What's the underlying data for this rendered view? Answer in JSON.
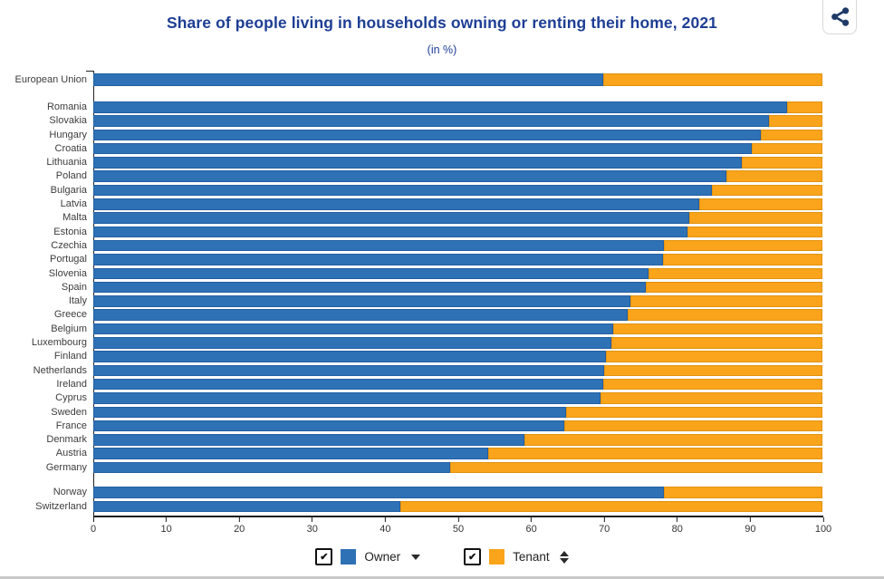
{
  "page": {
    "title": "Share of people living in households owning or renting their home, 2021",
    "subtitle": "(in %)"
  },
  "toolbar": {
    "share_icon": "share-icon",
    "share_icon_color": "#1f3a66"
  },
  "colors": {
    "owner": "#2E71B5",
    "tenant": "#F9A41B",
    "title_text": "#1d3e94",
    "axis": "#1a1a1a",
    "label_text": "#3c3c3c"
  },
  "chart_data": {
    "type": "bar",
    "stacked": true,
    "orientation": "horizontal",
    "title": "Share of people living in households owning or renting their home, 2021",
    "subtitle": "(in %)",
    "xlabel": "",
    "ylabel": "",
    "unit": "%",
    "xlim": [
      0,
      100
    ],
    "x_ticks": [
      0,
      10,
      20,
      30,
      40,
      50,
      60,
      70,
      80,
      90,
      100
    ],
    "grid": false,
    "legend_position": "bottom",
    "series": [
      {
        "name": "Owner",
        "color": "#2E71B5"
      },
      {
        "name": "Tenant",
        "color": "#F9A41B"
      }
    ],
    "groups": [
      {
        "label": "European Union",
        "owner": 69.9,
        "tenant": 30.1,
        "row_class": "eu"
      },
      {
        "label": "Romania",
        "owner": 95.2,
        "tenant": 4.8,
        "row_class": ""
      },
      {
        "label": "Slovakia",
        "owner": 92.7,
        "tenant": 7.3,
        "row_class": ""
      },
      {
        "label": "Hungary",
        "owner": 91.5,
        "tenant": 8.5,
        "row_class": ""
      },
      {
        "label": "Croatia",
        "owner": 90.3,
        "tenant": 9.7,
        "row_class": ""
      },
      {
        "label": "Lithuania",
        "owner": 88.9,
        "tenant": 11.1,
        "row_class": ""
      },
      {
        "label": "Poland",
        "owner": 86.8,
        "tenant": 13.2,
        "row_class": ""
      },
      {
        "label": "Bulgaria",
        "owner": 84.8,
        "tenant": 15.2,
        "row_class": ""
      },
      {
        "label": "Latvia",
        "owner": 83.1,
        "tenant": 16.9,
        "row_class": ""
      },
      {
        "label": "Malta",
        "owner": 81.8,
        "tenant": 18.2,
        "row_class": ""
      },
      {
        "label": "Estonia",
        "owner": 81.5,
        "tenant": 18.5,
        "row_class": ""
      },
      {
        "label": "Czechia",
        "owner": 78.2,
        "tenant": 21.8,
        "row_class": ""
      },
      {
        "label": "Portugal",
        "owner": 78.1,
        "tenant": 21.9,
        "row_class": ""
      },
      {
        "label": "Slovenia",
        "owner": 76.2,
        "tenant": 23.8,
        "row_class": ""
      },
      {
        "label": "Spain",
        "owner": 75.8,
        "tenant": 24.2,
        "row_class": ""
      },
      {
        "label": "Italy",
        "owner": 73.7,
        "tenant": 26.3,
        "row_class": ""
      },
      {
        "label": "Greece",
        "owner": 73.3,
        "tenant": 26.7,
        "row_class": ""
      },
      {
        "label": "Belgium",
        "owner": 71.3,
        "tenant": 28.7,
        "row_class": ""
      },
      {
        "label": "Luxembourg",
        "owner": 71.0,
        "tenant": 29.0,
        "row_class": ""
      },
      {
        "label": "Finland",
        "owner": 70.3,
        "tenant": 29.7,
        "row_class": ""
      },
      {
        "label": "Netherlands",
        "owner": 70.0,
        "tenant": 30.0,
        "row_class": ""
      },
      {
        "label": "Ireland",
        "owner": 69.9,
        "tenant": 30.1,
        "row_class": ""
      },
      {
        "label": "Cyprus",
        "owner": 69.6,
        "tenant": 30.4,
        "row_class": ""
      },
      {
        "label": "Sweden",
        "owner": 64.8,
        "tenant": 35.2,
        "row_class": ""
      },
      {
        "label": "France",
        "owner": 64.6,
        "tenant": 35.4,
        "row_class": ""
      },
      {
        "label": "Denmark",
        "owner": 59.1,
        "tenant": 40.9,
        "row_class": ""
      },
      {
        "label": "Austria",
        "owner": 54.1,
        "tenant": 45.9,
        "row_class": ""
      },
      {
        "label": "Germany",
        "owner": 49.0,
        "tenant": 51.0,
        "row_class": ""
      },
      {
        "label": "Norway",
        "owner": 78.2,
        "tenant": 21.8,
        "row_class": "gap"
      },
      {
        "label": "Switzerland",
        "owner": 42.1,
        "tenant": 57.9,
        "row_class": ""
      }
    ]
  },
  "legend": {
    "items": [
      {
        "label": "Owner",
        "checked": true,
        "check_glyph": "✔",
        "color": "#2E71B5",
        "sort_icon": "caret-down-icon"
      },
      {
        "label": "Tenant",
        "checked": true,
        "check_glyph": "✔",
        "color": "#F9A41B",
        "sort_icon": "sort-updown-icon"
      }
    ]
  }
}
